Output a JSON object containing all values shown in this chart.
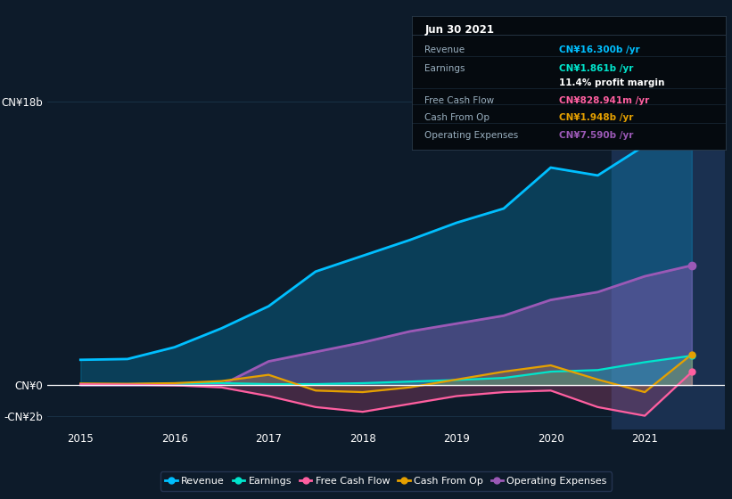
{
  "bg_color": "#0d1b2a",
  "plot_bg_color": "#0d1b2a",
  "grid_color": "#1e3a50",
  "zero_line_color": "#ffffff",
  "ylim": [
    -2800000000.0,
    20000000000.0
  ],
  "yticks": [
    -2000000000.0,
    0,
    18000000000.0
  ],
  "ytick_labels": [
    "-CN¥2b",
    "CN¥0",
    "CN¥18b"
  ],
  "xlim": [
    2014.65,
    2021.85
  ],
  "xticks": [
    2015,
    2016,
    2017,
    2018,
    2019,
    2020,
    2021
  ],
  "years": [
    2015.0,
    2015.5,
    2016.0,
    2016.5,
    2017.0,
    2017.5,
    2018.0,
    2018.5,
    2019.0,
    2019.5,
    2020.0,
    2020.5,
    2021.0,
    2021.5
  ],
  "revenue": [
    1600000000.0,
    1650000000.0,
    2400000000.0,
    3600000000.0,
    5000000000.0,
    7200000000.0,
    8200000000.0,
    9200000000.0,
    10300000000.0,
    11200000000.0,
    13800000000.0,
    13300000000.0,
    15200000000.0,
    16300000000.0
  ],
  "earnings": [
    50000000.0,
    60000000.0,
    80000000.0,
    120000000.0,
    60000000.0,
    60000000.0,
    120000000.0,
    220000000.0,
    320000000.0,
    450000000.0,
    850000000.0,
    950000000.0,
    1450000000.0,
    1861000000.0
  ],
  "free_cash_flow": [
    50000000.0,
    30000000.0,
    -20000000.0,
    -150000000.0,
    -700000000.0,
    -1400000000.0,
    -1700000000.0,
    -1200000000.0,
    -700000000.0,
    -450000000.0,
    -350000000.0,
    -1400000000.0,
    -1950000000.0,
    829000000.0
  ],
  "cash_from_op": [
    100000000.0,
    80000000.0,
    120000000.0,
    250000000.0,
    650000000.0,
    -350000000.0,
    -450000000.0,
    -150000000.0,
    350000000.0,
    850000000.0,
    1250000000.0,
    350000000.0,
    -450000000.0,
    1948000000.0
  ],
  "operating_expenses": [
    0.0,
    0.0,
    0.0,
    0.0,
    1500000000.0,
    2100000000.0,
    2700000000.0,
    3400000000.0,
    3900000000.0,
    4400000000.0,
    5400000000.0,
    5900000000.0,
    6900000000.0,
    7590000000.0
  ],
  "revenue_color": "#00bfff",
  "earnings_color": "#00e5cc",
  "free_cash_flow_color": "#ff5fa0",
  "cash_from_op_color": "#e5a000",
  "operating_expenses_color": "#9b59b6",
  "highlight_x_start": 2020.65,
  "highlight_x_end": 2021.85,
  "highlight_color": "#1a3050",
  "tooltip_title": "Jun 30 2021",
  "tooltip_rows": [
    {
      "label": "Revenue",
      "value": "CN¥16.300b /yr",
      "color": "#00bfff"
    },
    {
      "label": "Earnings",
      "value": "CN¥1.861b /yr",
      "color": "#00e5cc"
    },
    {
      "label": "",
      "value": "11.4% profit margin",
      "color": "#ffffff"
    },
    {
      "label": "Free Cash Flow",
      "value": "CN¥828.941m /yr",
      "color": "#ff5fa0"
    },
    {
      "label": "Cash From Op",
      "value": "CN¥1.948b /yr",
      "color": "#e5a000"
    },
    {
      "label": "Operating Expenses",
      "value": "CN¥7.590b /yr",
      "color": "#9b59b6"
    }
  ],
  "legend_items": [
    {
      "label": "Revenue",
      "color": "#00bfff"
    },
    {
      "label": "Earnings",
      "color": "#00e5cc"
    },
    {
      "label": "Free Cash Flow",
      "color": "#ff5fa0"
    },
    {
      "label": "Cash From Op",
      "color": "#e5a000"
    },
    {
      "label": "Operating Expenses",
      "color": "#9b59b6"
    }
  ]
}
